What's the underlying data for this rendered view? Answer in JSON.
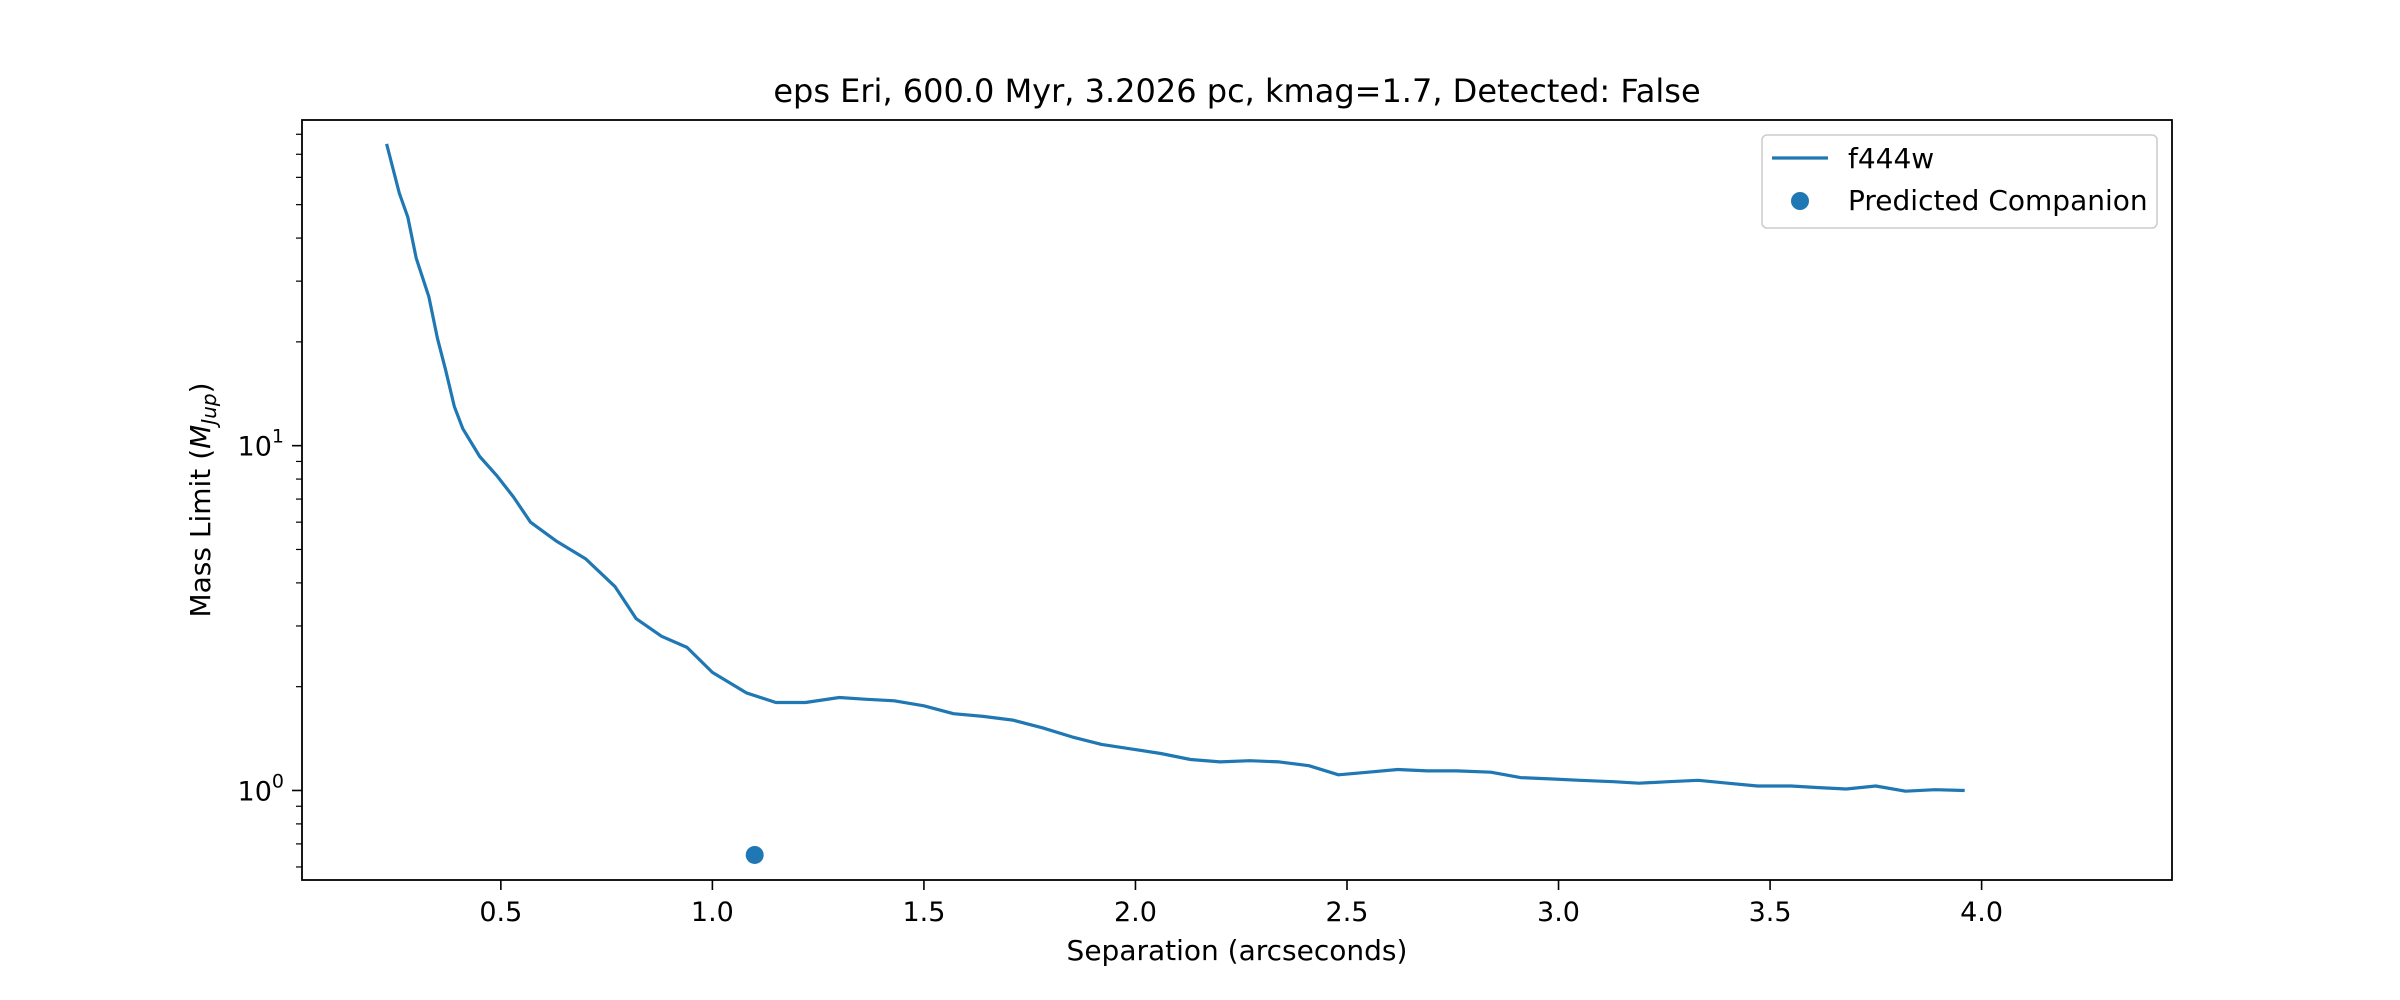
{
  "chart_data": {
    "type": "line",
    "title": "eps Eri, 600.0 Myr, 3.2026 pc, kmag=1.7, Detected: False",
    "xlabel": "Separation (arcseconds)",
    "ylabel_text": "Mass Limit (",
    "ylabel_math": "M",
    "ylabel_sub": "Jup",
    "ylabel_close": ")",
    "xlim": [
      0.03,
      4.45
    ],
    "ylim": [
      0.55,
      88
    ],
    "yscale": "log",
    "x_ticks": [
      0.5,
      1.0,
      1.5,
      2.0,
      2.5,
      3.0,
      3.5,
      4.0
    ],
    "x_tick_labels": [
      "0.5",
      "1.0",
      "1.5",
      "2.0",
      "2.5",
      "3.0",
      "3.5",
      "4.0"
    ],
    "y_major_ticks": [
      1,
      10
    ],
    "y_tick_labels": [
      {
        "base": "10",
        "exp": "0"
      },
      {
        "base": "10",
        "exp": "1"
      }
    ],
    "y_minor_ticks": [
      0.6,
      0.7,
      0.8,
      0.9,
      2,
      3,
      4,
      5,
      6,
      7,
      8,
      9,
      20,
      30,
      40,
      50,
      60,
      70,
      80
    ],
    "grid": false,
    "legend_placement": "top-right",
    "series": [
      {
        "name": "f444w",
        "kind": "line",
        "color": "#1f77b4",
        "x": [
          0.23,
          0.26,
          0.28,
          0.3,
          0.33,
          0.35,
          0.37,
          0.39,
          0.41,
          0.45,
          0.49,
          0.53,
          0.57,
          0.63,
          0.7,
          0.77,
          0.82,
          0.88,
          0.94,
          1.0,
          1.08,
          1.15,
          1.22,
          1.3,
          1.36,
          1.43,
          1.5,
          1.57,
          1.64,
          1.71,
          1.78,
          1.85,
          1.92,
          1.99,
          2.06,
          2.13,
          2.2,
          2.27,
          2.34,
          2.41,
          2.48,
          2.55,
          2.62,
          2.69,
          2.76,
          2.84,
          2.91,
          2.98,
          3.05,
          3.13,
          3.19,
          3.26,
          3.33,
          3.4,
          3.47,
          3.55,
          3.61,
          3.68,
          3.75,
          3.82,
          3.89,
          3.96
        ],
        "y": [
          75,
          54,
          46,
          35,
          27,
          20.5,
          16.5,
          13,
          11.2,
          9.3,
          8.2,
          7.1,
          6.0,
          5.3,
          4.7,
          3.9,
          3.15,
          2.8,
          2.6,
          2.2,
          1.92,
          1.8,
          1.8,
          1.86,
          1.84,
          1.82,
          1.76,
          1.67,
          1.64,
          1.6,
          1.52,
          1.43,
          1.36,
          1.32,
          1.28,
          1.23,
          1.21,
          1.22,
          1.21,
          1.18,
          1.11,
          1.13,
          1.15,
          1.14,
          1.14,
          1.13,
          1.09,
          1.08,
          1.07,
          1.06,
          1.05,
          1.06,
          1.07,
          1.05,
          1.03,
          1.03,
          1.02,
          1.01,
          1.03,
          0.995,
          1.005,
          1.0
        ]
      },
      {
        "name": "Predicted Companion",
        "kind": "scatter",
        "color": "#1f77b4",
        "x": [
          1.1
        ],
        "y": [
          0.65
        ]
      }
    ]
  }
}
